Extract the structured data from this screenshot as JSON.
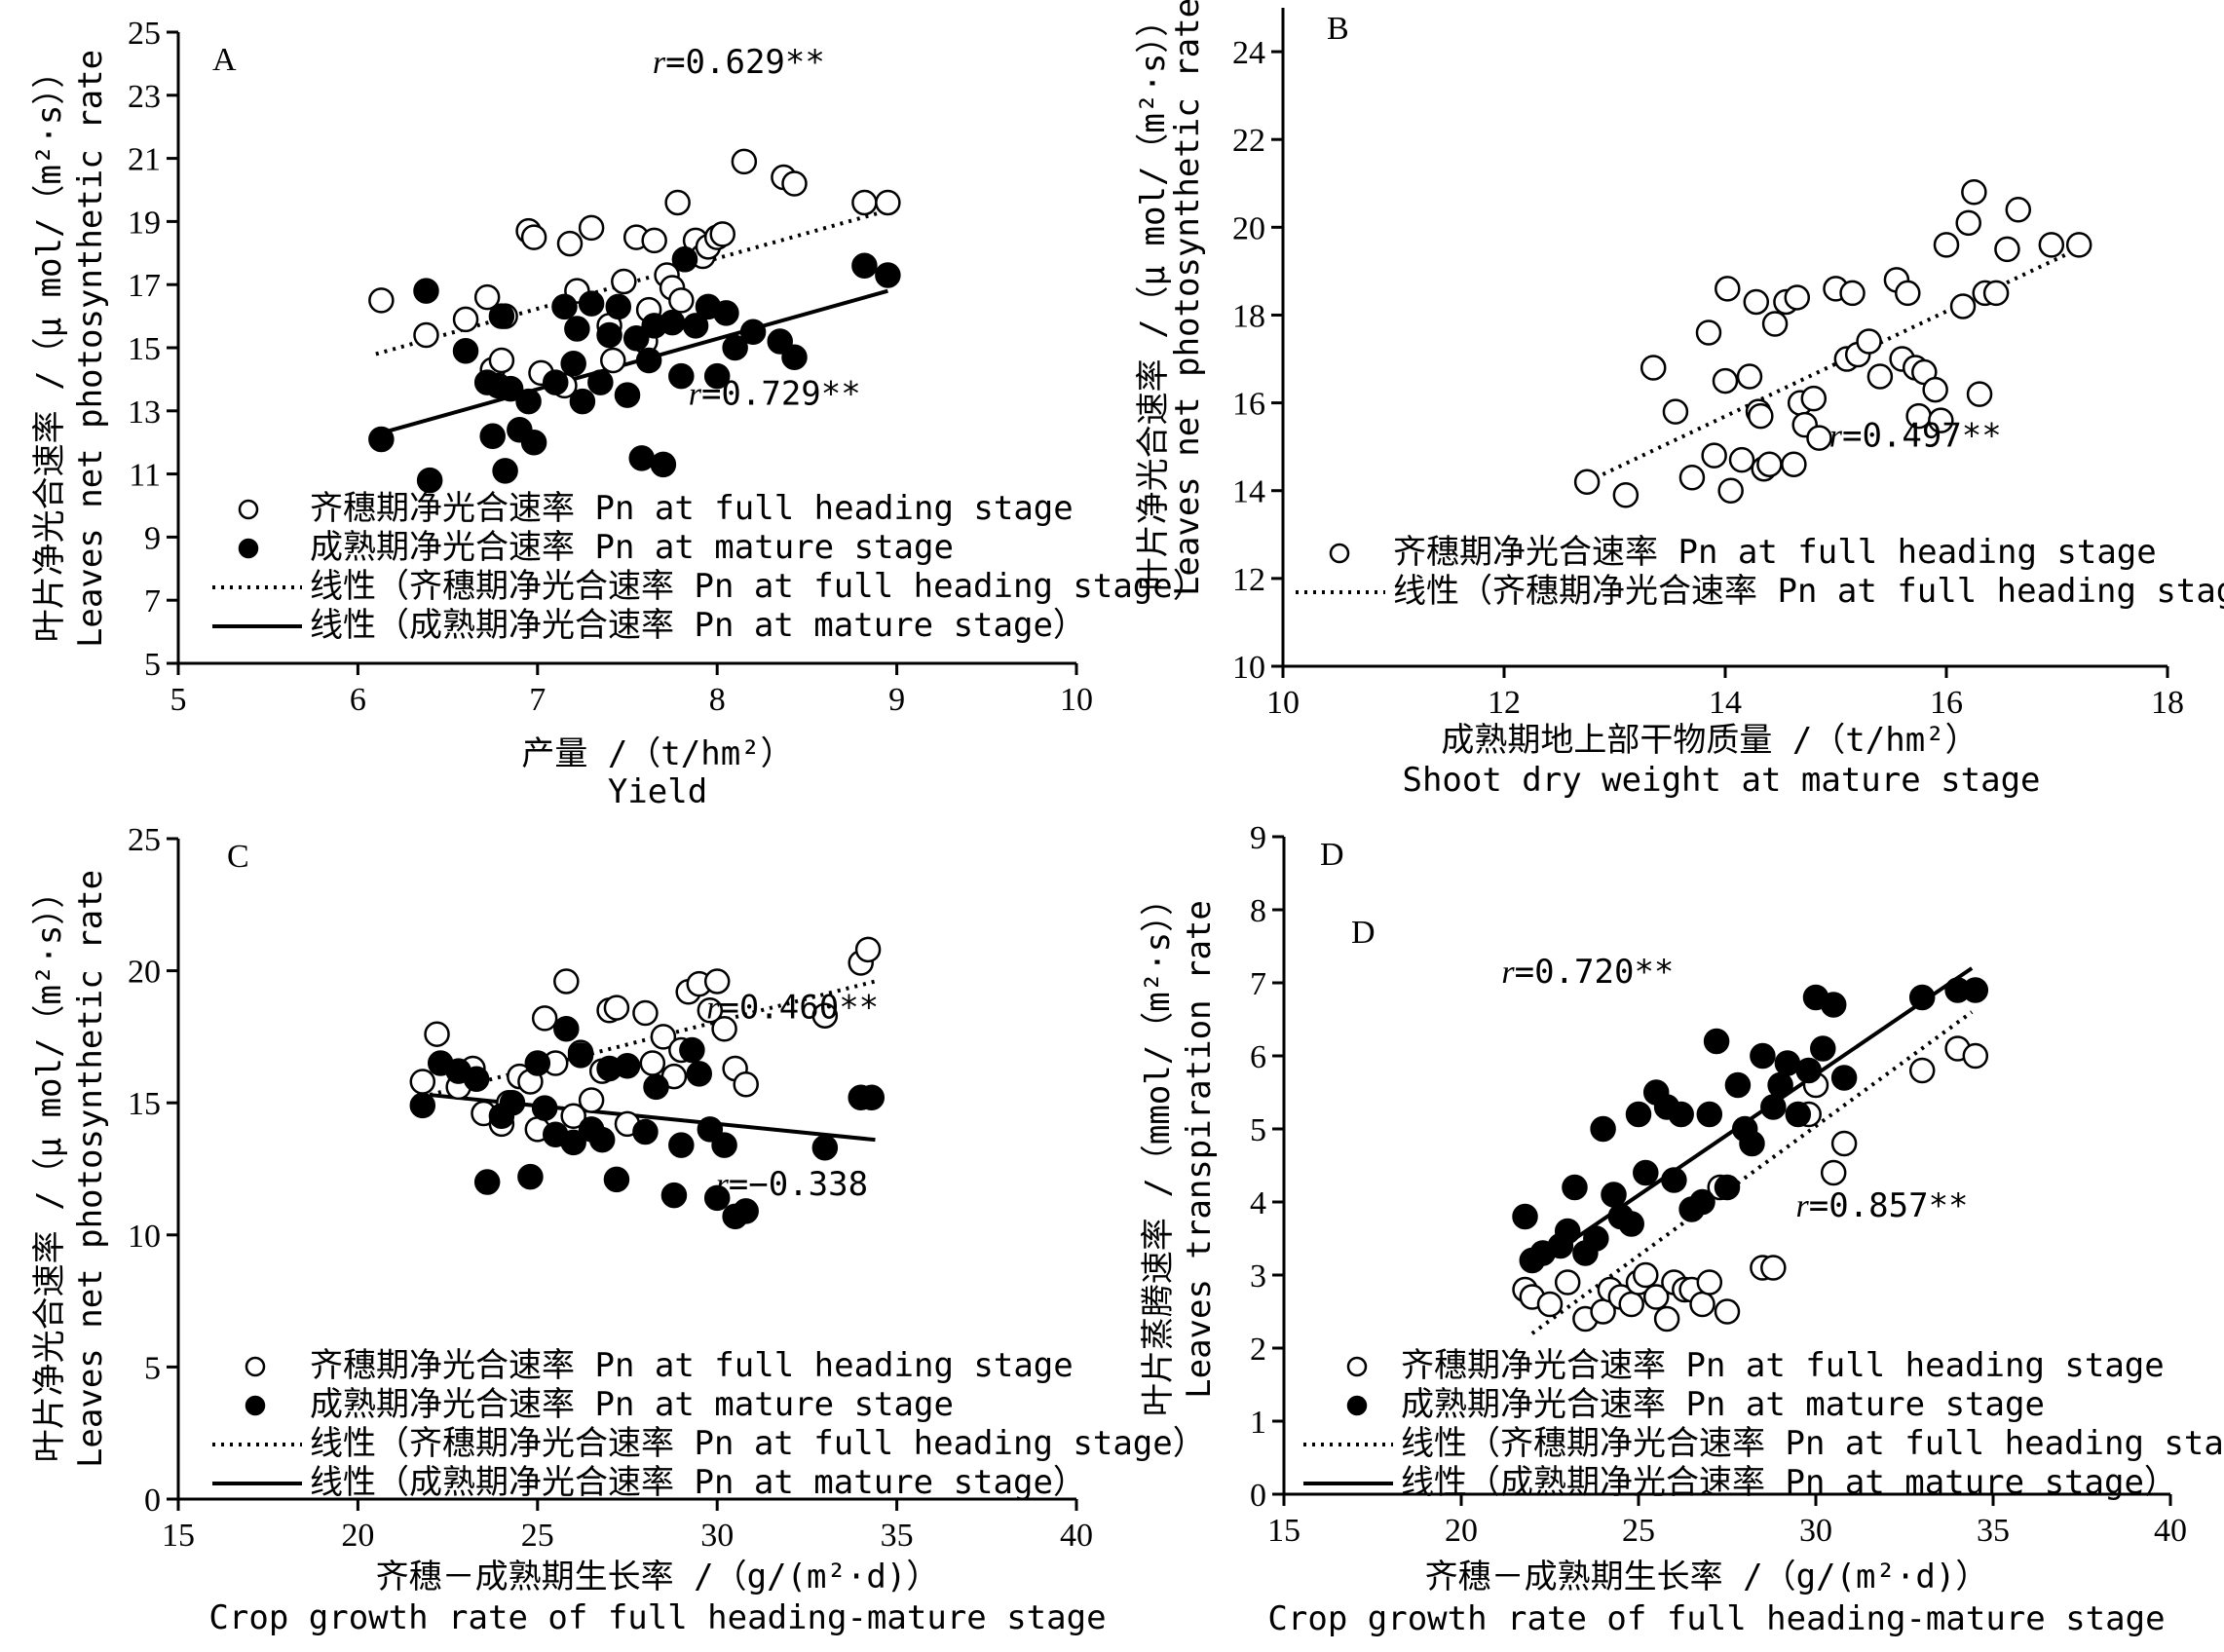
{
  "chart_data": [
    {
      "type": "scatter",
      "panel_label": "A",
      "panel_label_extra": "",
      "xlabel": [
        "产量 /（t/hm²）",
        "Yield"
      ],
      "ylabel": [
        "叶片净光合速率 /（μ mol/（m²·s））",
        "Leaves net photosynthetic rate"
      ],
      "xlim": [
        5,
        10
      ],
      "ylim": [
        5,
        25
      ],
      "xticks": [
        5,
        6,
        7,
        8,
        9,
        10
      ],
      "yticks": [
        5,
        7,
        9,
        11,
        13,
        15,
        17,
        19,
        21,
        23,
        25
      ],
      "series": [
        {
          "name": "齐穗期净光合速率 Pn at full heading stage",
          "marker": "open",
          "x": [
            6.13,
            6.38,
            6.6,
            6.72,
            6.75,
            6.8,
            6.82,
            6.95,
            6.98,
            7.02,
            7.15,
            7.18,
            7.22,
            7.3,
            7.4,
            7.42,
            7.48,
            7.55,
            7.6,
            7.62,
            7.65,
            7.72,
            7.75,
            7.78,
            7.8,
            7.82,
            7.88,
            7.92,
            7.95,
            8.0,
            8.03,
            8.15,
            8.37,
            8.43,
            8.82,
            8.95
          ],
          "y": [
            16.5,
            15.4,
            15.9,
            16.6,
            14.3,
            14.6,
            16.0,
            18.7,
            18.5,
            14.2,
            13.8,
            18.3,
            16.8,
            18.8,
            15.7,
            14.6,
            17.1,
            18.5,
            15.2,
            16.2,
            18.4,
            17.3,
            16.9,
            19.6,
            16.5,
            17.8,
            18.4,
            17.9,
            18.2,
            18.5,
            18.6,
            20.9,
            20.4,
            20.2,
            19.6,
            19.6
          ]
        },
        {
          "name": "成熟期净光合速率 Pn at mature stage",
          "marker": "filled",
          "x": [
            6.13,
            6.38,
            6.4,
            6.6,
            6.72,
            6.75,
            6.78,
            6.8,
            6.82,
            6.85,
            6.9,
            6.95,
            6.98,
            7.1,
            7.15,
            7.2,
            7.22,
            7.25,
            7.3,
            7.35,
            7.4,
            7.45,
            7.5,
            7.55,
            7.58,
            7.62,
            7.65,
            7.7,
            7.75,
            7.8,
            7.82,
            7.88,
            7.95,
            8.0,
            8.05,
            8.1,
            8.2,
            8.35,
            8.43,
            8.82,
            8.95
          ],
          "y": [
            12.1,
            16.8,
            10.8,
            14.9,
            13.9,
            12.2,
            13.8,
            16.0,
            11.1,
            13.7,
            12.4,
            13.3,
            12.0,
            13.9,
            16.3,
            14.5,
            15.6,
            13.3,
            16.4,
            13.9,
            15.4,
            16.3,
            13.5,
            15.3,
            11.5,
            14.6,
            15.7,
            11.3,
            15.8,
            14.1,
            17.8,
            15.7,
            16.3,
            14.1,
            16.1,
            15.0,
            15.5,
            15.2,
            14.7,
            17.6,
            17.3
          ]
        }
      ],
      "trendlines": [
        {
          "series": "线性（齐穗期净光合速率 Pn at full heading stage）",
          "style": "dotted",
          "x": [
            6.1,
            8.95
          ],
          "y": [
            14.8,
            19.35
          ]
        },
        {
          "series": "线性（成熟期净光合速率 Pn at mature stage）",
          "style": "solid",
          "x": [
            6.1,
            8.95
          ],
          "y": [
            12.25,
            16.8
          ]
        }
      ],
      "annotations": [
        {
          "r": "r",
          "text": "=0.629**",
          "x": 8.6,
          "y": 23.7
        },
        {
          "r": "r",
          "text": "=0.729**",
          "x": 8.8,
          "y": 13.2
        }
      ],
      "legend": {
        "position": "bottom-left",
        "entries": [
          {
            "marker": "open",
            "label": "齐穗期净光合速率 Pn at full heading stage"
          },
          {
            "marker": "filled",
            "label": "成熟期净光合速率 Pn at mature stage"
          },
          {
            "marker": "dotted",
            "label": "线性（齐穗期净光合速率 Pn at full heading stage）"
          },
          {
            "marker": "solid",
            "label": "线性（成熟期净光合速率 Pn at mature stage）"
          }
        ]
      },
      "grid": false
    },
    {
      "type": "scatter",
      "panel_label": "B",
      "panel_label_extra": "",
      "xlabel": [
        "成熟期地上部干物质量 /（t/hm²）",
        "Shoot dry weight at mature stage"
      ],
      "ylabel": [
        "叶片净光合速率 /（μ mol/（m²·s））",
        "Leaves net photosynthetic rate"
      ],
      "xlim": [
        10,
        18
      ],
      "ylim": [
        10,
        25
      ],
      "xticks": [
        10,
        12,
        14,
        16,
        18
      ],
      "yticks": [
        10,
        12,
        14,
        16,
        18,
        20,
        22,
        24
      ],
      "series": [
        {
          "name": "齐穗期净光合速率 Pn at full heading stage",
          "marker": "open",
          "x": [
            12.75,
            13.1,
            13.35,
            13.55,
            13.7,
            13.85,
            13.9,
            14.0,
            14.02,
            14.05,
            14.15,
            14.22,
            14.28,
            14.3,
            14.32,
            14.35,
            14.4,
            14.45,
            14.55,
            14.62,
            14.65,
            14.68,
            14.72,
            14.8,
            14.85,
            15.0,
            15.1,
            15.15,
            15.2,
            15.3,
            15.4,
            15.55,
            15.6,
            15.65,
            15.72,
            15.75,
            15.8,
            15.9,
            15.95,
            16.0,
            16.15,
            16.2,
            16.25,
            16.3,
            16.35,
            16.45,
            16.55,
            16.65,
            16.95,
            17.2
          ],
          "y": [
            14.2,
            13.9,
            16.8,
            15.8,
            14.3,
            17.6,
            14.8,
            16.5,
            18.6,
            14.0,
            14.7,
            16.6,
            18.3,
            15.8,
            15.7,
            14.5,
            14.6,
            17.8,
            18.3,
            14.6,
            18.4,
            16.0,
            15.5,
            16.1,
            15.2,
            18.6,
            17.0,
            18.5,
            17.1,
            17.4,
            16.6,
            18.8,
            17.0,
            18.5,
            16.8,
            15.7,
            16.7,
            16.3,
            15.6,
            19.6,
            18.2,
            20.1,
            20.8,
            16.2,
            18.5,
            18.5,
            19.5,
            20.4,
            19.6,
            19.6
          ]
        }
      ],
      "trendlines": [
        {
          "series": "线性（齐穗期净光合速率 Pn at full heading stage）",
          "style": "dotted",
          "x": [
            12.75,
            17.1
          ],
          "y": [
            14.2,
            19.4
          ]
        }
      ],
      "annotations": [
        {
          "r": "r",
          "text": "=0.497**",
          "x": 16.5,
          "y": 15.0
        }
      ],
      "legend": {
        "position": "bottom-left",
        "entries": [
          {
            "marker": "open",
            "label": "齐穗期净光合速率 Pn at full heading stage"
          },
          {
            "marker": "dotted",
            "label": "线性（齐穗期净光合速率 Pn at full heading stage）"
          }
        ]
      },
      "grid": false
    },
    {
      "type": "scatter",
      "panel_label": "C",
      "panel_label_extra": "",
      "xlabel": [
        "齐穗－成熟期生长率 /（g/(m²·d)）",
        "Crop growth rate of full heading-mature stage"
      ],
      "ylabel": [
        "叶片净光合速率 /（μ mol/（m²·s））",
        "Leaves net photosynthetic rate"
      ],
      "xlim": [
        15,
        40
      ],
      "ylim": [
        0,
        25
      ],
      "xticks": [
        15,
        20,
        25,
        30,
        35,
        40
      ],
      "yticks": [
        0,
        5,
        10,
        15,
        20,
        25
      ],
      "series": [
        {
          "name": "齐穗期净光合速率 Pn at full heading stage",
          "marker": "open",
          "x": [
            21.8,
            22.2,
            22.8,
            23.2,
            23.5,
            24.0,
            24.2,
            24.5,
            24.8,
            25.0,
            25.2,
            25.5,
            25.8,
            26.0,
            26.2,
            26.5,
            26.8,
            27.0,
            27.2,
            27.5,
            28.0,
            28.2,
            28.5,
            28.8,
            29.0,
            29.2,
            29.5,
            29.8,
            30.0,
            30.2,
            30.5,
            30.8,
            33.0,
            34.0,
            34.2
          ],
          "y": [
            15.8,
            17.6,
            15.6,
            16.3,
            14.6,
            14.2,
            15.0,
            16.0,
            15.8,
            14.0,
            18.2,
            16.5,
            19.6,
            14.5,
            16.9,
            15.1,
            16.2,
            18.5,
            18.6,
            14.2,
            18.4,
            16.5,
            17.5,
            16.0,
            17.0,
            19.2,
            19.5,
            18.5,
            19.6,
            17.8,
            16.3,
            15.7,
            18.3,
            20.3,
            20.8
          ]
        },
        {
          "name": "成熟期净光合速率 Pn at mature stage",
          "marker": "filled",
          "x": [
            21.8,
            22.3,
            22.8,
            23.3,
            23.6,
            24.0,
            24.3,
            24.8,
            25.0,
            25.2,
            25.5,
            25.8,
            26.0,
            26.2,
            26.5,
            26.8,
            27.0,
            27.2,
            27.5,
            28.0,
            28.3,
            28.8,
            29.0,
            29.3,
            29.5,
            29.8,
            30.0,
            30.2,
            30.5,
            30.8,
            33.0,
            34.0,
            34.3
          ],
          "y": [
            14.9,
            16.5,
            16.2,
            15.9,
            12.0,
            14.5,
            15.0,
            12.2,
            16.5,
            14.8,
            13.8,
            17.8,
            13.5,
            16.8,
            14.0,
            13.6,
            16.3,
            12.1,
            16.4,
            13.9,
            15.6,
            11.5,
            13.4,
            17.0,
            16.1,
            14.0,
            11.4,
            13.4,
            10.7,
            10.9,
            13.3,
            15.2,
            15.2
          ]
        }
      ],
      "trendlines": [
        {
          "series": "线性（齐穗期净光合速率 Pn at full heading stage）",
          "style": "dotted",
          "x": [
            22.0,
            34.4
          ],
          "y": [
            15.3,
            19.6
          ]
        },
        {
          "series": "线性（成熟期净光合速率 Pn at mature stage）",
          "style": "solid",
          "x": [
            22.0,
            34.4
          ],
          "y": [
            15.3,
            13.6
          ]
        }
      ],
      "annotations": [
        {
          "r": "r",
          "text": "=0.460**",
          "x": 34.5,
          "y": 18.2
        },
        {
          "r": "r",
          "text": "=−0.338",
          "x": 34.2,
          "y": 11.5
        }
      ],
      "legend": {
        "position": "bottom-left",
        "entries": [
          {
            "marker": "open",
            "label": "齐穗期净光合速率 Pn at full heading stage"
          },
          {
            "marker": "filled",
            "label": "成熟期净光合速率 Pn at mature stage"
          },
          {
            "marker": "dotted",
            "label": "线性（齐穗期净光合速率 Pn at full heading stage）"
          },
          {
            "marker": "solid",
            "label": "线性（成熟期净光合速率 Pn at mature stage）"
          }
        ]
      },
      "grid": false
    },
    {
      "type": "scatter",
      "panel_label": "D",
      "panel_label_extra": "D",
      "xlabel": [
        "齐穗－成熟期生长率 /（g/(m²·d)）",
        "Crop growth rate of full heading-mature stage"
      ],
      "ylabel": [
        "叶片蒸腾速率 /（mmol/（m²·s））",
        "Leaves transpiration rate"
      ],
      "xlim": [
        15,
        40
      ],
      "ylim": [
        0,
        9
      ],
      "xticks": [
        15,
        20,
        25,
        30,
        35,
        40
      ],
      "yticks": [
        0,
        1,
        2,
        3,
        4,
        5,
        6,
        7,
        8,
        9
      ],
      "series": [
        {
          "name": "齐穗期净光合速率 Pn at full heading stage",
          "marker": "open",
          "x": [
            21.8,
            22.0,
            22.5,
            23.0,
            23.5,
            24.0,
            24.2,
            24.5,
            24.8,
            25.0,
            25.2,
            25.5,
            25.8,
            26.0,
            26.3,
            26.5,
            26.8,
            27.0,
            27.3,
            27.5,
            28.5,
            28.8,
            29.8,
            30.0,
            30.5,
            30.8,
            33.0,
            34.0,
            34.5
          ],
          "y": [
            2.8,
            2.7,
            2.6,
            2.9,
            2.4,
            2.5,
            2.8,
            2.7,
            2.6,
            2.9,
            3.0,
            2.7,
            2.4,
            2.9,
            2.8,
            2.8,
            2.6,
            2.9,
            4.2,
            2.5,
            3.1,
            3.1,
            5.2,
            5.6,
            4.4,
            4.8,
            5.8,
            6.1,
            6.0
          ]
        },
        {
          "name": "成熟期净光合速率 Pn at mature stage",
          "marker": "filled",
          "x": [
            21.8,
            22.0,
            22.3,
            22.8,
            23.0,
            23.2,
            23.5,
            23.8,
            24.0,
            24.3,
            24.5,
            24.8,
            25.0,
            25.2,
            25.5,
            25.8,
            26.0,
            26.2,
            26.5,
            26.8,
            27.0,
            27.2,
            27.5,
            27.8,
            28.0,
            28.2,
            28.5,
            28.8,
            29.0,
            29.2,
            29.5,
            29.8,
            30.0,
            30.2,
            30.5,
            30.8,
            33.0,
            34.0,
            34.5
          ],
          "y": [
            3.8,
            3.2,
            3.3,
            3.4,
            3.6,
            4.2,
            3.3,
            3.5,
            5.0,
            4.1,
            3.8,
            3.7,
            5.2,
            4.4,
            5.5,
            5.3,
            4.3,
            5.2,
            3.9,
            4.0,
            5.2,
            6.2,
            4.2,
            5.6,
            5.0,
            4.8,
            6.0,
            5.3,
            5.6,
            5.9,
            5.2,
            5.8,
            6.8,
            6.1,
            6.7,
            5.7,
            6.8,
            6.9,
            6.9
          ]
        }
      ],
      "trendlines": [
        {
          "series": "线性（齐穗期净光合速率 Pn at full heading stage）",
          "style": "dotted",
          "x": [
            22.0,
            34.4
          ],
          "y": [
            2.2,
            6.6
          ]
        },
        {
          "series": "线性（成熟期净光合速率 Pn at mature stage）",
          "style": "solid",
          "x": [
            22.0,
            34.4
          ],
          "y": [
            3.1,
            7.2
          ]
        }
      ],
      "annotations": [
        {
          "r": "r",
          "text": "=0.720**",
          "x": 26.0,
          "y": 7.0
        },
        {
          "r": "r",
          "text": "=0.857**",
          "x": 34.3,
          "y": 3.8
        }
      ],
      "legend": {
        "position": "bottom-left",
        "entries": [
          {
            "marker": "open",
            "label": "齐穗期净光合速率 Pn at full heading stage"
          },
          {
            "marker": "filled",
            "label": "成熟期净光合速率 Pn at mature stage"
          },
          {
            "marker": "dotted",
            "label": "线性（齐穗期净光合速率 Pn at full heading stage）"
          },
          {
            "marker": "solid",
            "label": "线性（成熟期净光合速率 Pn at mature stage）"
          }
        ]
      },
      "grid": false
    }
  ]
}
